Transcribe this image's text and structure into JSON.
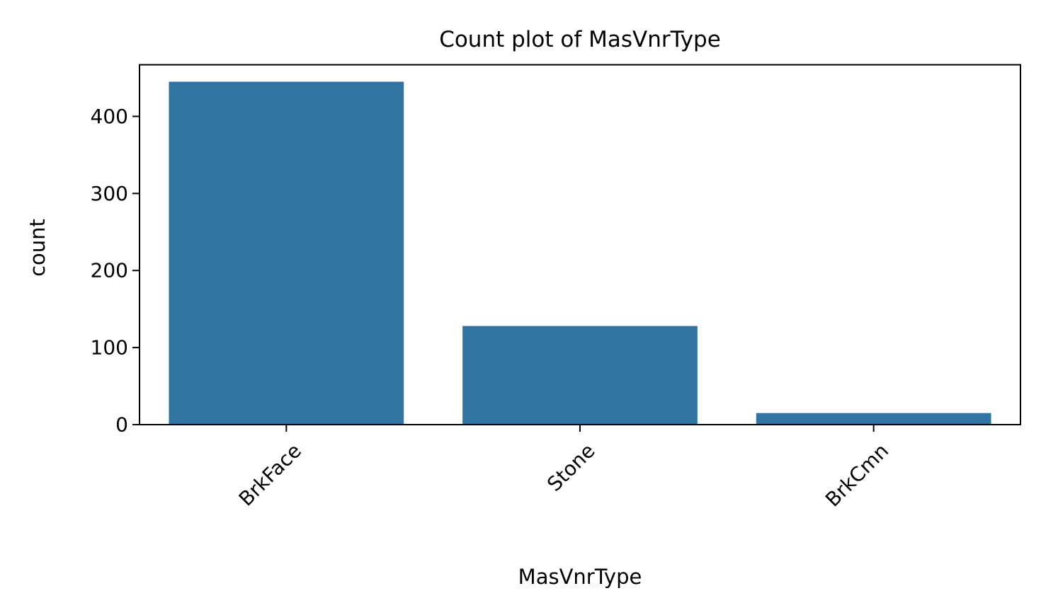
{
  "chart_data": {
    "type": "bar",
    "title": "Count plot of MasVnrType",
    "xlabel": "MasVnrType",
    "ylabel": "count",
    "categories": [
      "BrkFace",
      "Stone",
      "BrkCmn"
    ],
    "values": [
      445,
      128,
      15
    ],
    "ylim": [
      0,
      467
    ],
    "yticks": [
      0,
      100,
      200,
      300,
      400
    ],
    "grid": false,
    "bar_color": "#3274a1"
  }
}
